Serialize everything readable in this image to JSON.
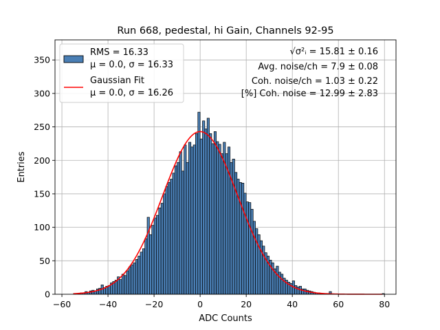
{
  "chart_data": {
    "type": "bar",
    "title": "Run 668, pedestal, hi Gain, Channels 92-95",
    "xlabel": "ADC Counts",
    "ylabel": "Entries",
    "xlim": [
      -63,
      85
    ],
    "ylim": [
      0,
      380
    ],
    "xticks": [
      -60,
      -40,
      -20,
      0,
      20,
      40,
      60,
      80
    ],
    "yticks": [
      0,
      50,
      100,
      150,
      200,
      250,
      300,
      350
    ],
    "grid": true,
    "legend_placement": "upper-left",
    "bin_width": 1,
    "bar_color": "#4a7fb5",
    "bar_edge_color": "#000000",
    "fit_color": "#ff0000",
    "histogram": {
      "name": "RMS = 16.33",
      "name_line2": "μ = 0.0, σ = 16.33",
      "bins": [
        [
          -55,
          1
        ],
        [
          -54,
          0
        ],
        [
          -53,
          1
        ],
        [
          -52,
          2
        ],
        [
          -51,
          2
        ],
        [
          -50,
          4
        ],
        [
          -49,
          3
        ],
        [
          -48,
          5
        ],
        [
          -47,
          6
        ],
        [
          -46,
          5
        ],
        [
          -45,
          8
        ],
        [
          -44,
          9
        ],
        [
          -43,
          14
        ],
        [
          -42,
          10
        ],
        [
          -41,
          12
        ],
        [
          -40,
          13
        ],
        [
          -39,
          17
        ],
        [
          -38,
          19
        ],
        [
          -37,
          21
        ],
        [
          -36,
          26
        ],
        [
          -35,
          22
        ],
        [
          -34,
          30
        ],
        [
          -33,
          28
        ],
        [
          -32,
          35
        ],
        [
          -31,
          41
        ],
        [
          -30,
          44
        ],
        [
          -29,
          47
        ],
        [
          -28,
          52
        ],
        [
          -27,
          57
        ],
        [
          -26,
          63
        ],
        [
          -25,
          68
        ],
        [
          -24,
          83
        ],
        [
          -23,
          115
        ],
        [
          -22,
          89
        ],
        [
          -21,
          103
        ],
        [
          -20,
          114
        ],
        [
          -19,
          118
        ],
        [
          -18,
          129
        ],
        [
          -17,
          136
        ],
        [
          -16,
          150
        ],
        [
          -15,
          161
        ],
        [
          -14,
          167
        ],
        [
          -13,
          172
        ],
        [
          -12,
          181
        ],
        [
          -11,
          192
        ],
        [
          -10,
          197
        ],
        [
          -9,
          213
        ],
        [
          -8,
          184
        ],
        [
          -7,
          223
        ],
        [
          -6,
          197
        ],
        [
          -5,
          227
        ],
        [
          -4,
          220
        ],
        [
          -3,
          223
        ],
        [
          -2,
          240
        ],
        [
          -1,
          272
        ],
        [
          0,
          232
        ],
        [
          1,
          259
        ],
        [
          2,
          247
        ],
        [
          3,
          263
        ],
        [
          4,
          240
        ],
        [
          5,
          225
        ],
        [
          6,
          243
        ],
        [
          7,
          228
        ],
        [
          8,
          224
        ],
        [
          9,
          210
        ],
        [
          10,
          227
        ],
        [
          11,
          210
        ],
        [
          12,
          220
        ],
        [
          13,
          197
        ],
        [
          14,
          202
        ],
        [
          15,
          182
        ],
        [
          16,
          172
        ],
        [
          17,
          167
        ],
        [
          18,
          166
        ],
        [
          19,
          151
        ],
        [
          20,
          138
        ],
        [
          21,
          137
        ],
        [
          22,
          127
        ],
        [
          23,
          109
        ],
        [
          24,
          98
        ],
        [
          25,
          89
        ],
        [
          26,
          80
        ],
        [
          27,
          72
        ],
        [
          28,
          62
        ],
        [
          29,
          57
        ],
        [
          30,
          51
        ],
        [
          31,
          47
        ],
        [
          32,
          38
        ],
        [
          33,
          42
        ],
        [
          34,
          33
        ],
        [
          35,
          30
        ],
        [
          36,
          24
        ],
        [
          37,
          21
        ],
        [
          38,
          18
        ],
        [
          39,
          16
        ],
        [
          40,
          20
        ],
        [
          41,
          13
        ],
        [
          42,
          11
        ],
        [
          43,
          12
        ],
        [
          44,
          8
        ],
        [
          45,
          8
        ],
        [
          46,
          6
        ],
        [
          47,
          5
        ],
        [
          48,
          4
        ],
        [
          49,
          3
        ],
        [
          50,
          2
        ],
        [
          51,
          2
        ],
        [
          52,
          1
        ],
        [
          53,
          1
        ],
        [
          54,
          1
        ],
        [
          55,
          1
        ],
        [
          56,
          4
        ],
        [
          57,
          0
        ],
        [
          58,
          0
        ],
        [
          59,
          0
        ],
        [
          60,
          0
        ],
        [
          61,
          0
        ],
        [
          62,
          0
        ],
        [
          63,
          0
        ],
        [
          64,
          0
        ],
        [
          65,
          0
        ],
        [
          66,
          0
        ],
        [
          67,
          0
        ],
        [
          68,
          0
        ],
        [
          69,
          0
        ],
        [
          70,
          0
        ],
        [
          71,
          0
        ],
        [
          72,
          0
        ],
        [
          73,
          0
        ],
        [
          74,
          0
        ],
        [
          75,
          0
        ],
        [
          76,
          0
        ],
        [
          77,
          0
        ],
        [
          78,
          0
        ],
        [
          79,
          1
        ]
      ]
    },
    "fit": {
      "name": "Gaussian Fit",
      "name_line2": "μ = 0.0, σ = 16.26",
      "mu": 0.0,
      "sigma": 16.26,
      "amplitude": 243,
      "x_range": [
        -55,
        79
      ]
    },
    "annotations": [
      "√σ²ᵢ = 15.81 ± 0.16",
      "Avg. noise/ch = 7.9 ± 0.08",
      "Coh. noise/ch = 1.03 ± 0.22",
      "[%] Coh. noise = 12.99 ± 2.83"
    ]
  }
}
